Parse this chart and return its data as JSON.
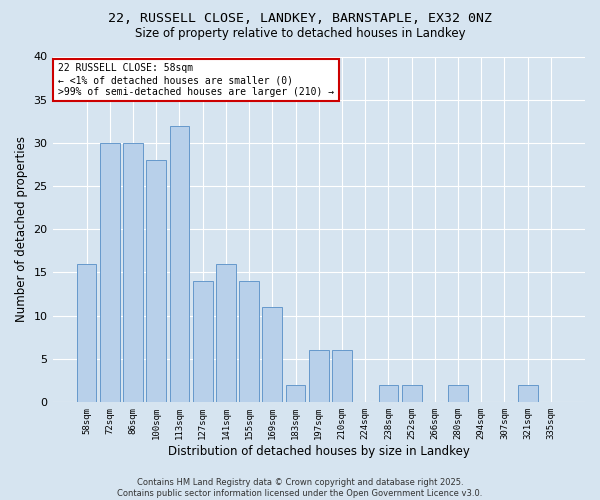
{
  "title_line1": "22, RUSSELL CLOSE, LANDKEY, BARNSTAPLE, EX32 0NZ",
  "title_line2": "Size of property relative to detached houses in Landkey",
  "xlabel": "Distribution of detached houses by size in Landkey",
  "ylabel": "Number of detached properties",
  "categories": [
    "58sqm",
    "72sqm",
    "86sqm",
    "100sqm",
    "113sqm",
    "127sqm",
    "141sqm",
    "155sqm",
    "169sqm",
    "183sqm",
    "197sqm",
    "210sqm",
    "224sqm",
    "238sqm",
    "252sqm",
    "266sqm",
    "280sqm",
    "294sqm",
    "307sqm",
    "321sqm",
    "335sqm"
  ],
  "values": [
    16,
    30,
    30,
    28,
    32,
    14,
    16,
    14,
    11,
    2,
    6,
    6,
    0,
    2,
    2,
    0,
    2,
    0,
    0,
    2,
    0
  ],
  "bar_color": "#b8d0ea",
  "bar_edge_color": "#6699cc",
  "ylim": [
    0,
    40
  ],
  "yticks": [
    0,
    5,
    10,
    15,
    20,
    25,
    30,
    35,
    40
  ],
  "annotation_title": "22 RUSSELL CLOSE: 58sqm",
  "annotation_line2": "← <1% of detached houses are smaller (0)",
  "annotation_line3": ">99% of semi-detached houses are larger (210) →",
  "annotation_box_color": "#ffffff",
  "annotation_border_color": "#cc0000",
  "footer_line1": "Contains HM Land Registry data © Crown copyright and database right 2025.",
  "footer_line2": "Contains public sector information licensed under the Open Government Licence v3.0.",
  "background_color": "#d6e4f0",
  "plot_bg_color": "#d6e4f0",
  "grid_color": "#ffffff"
}
